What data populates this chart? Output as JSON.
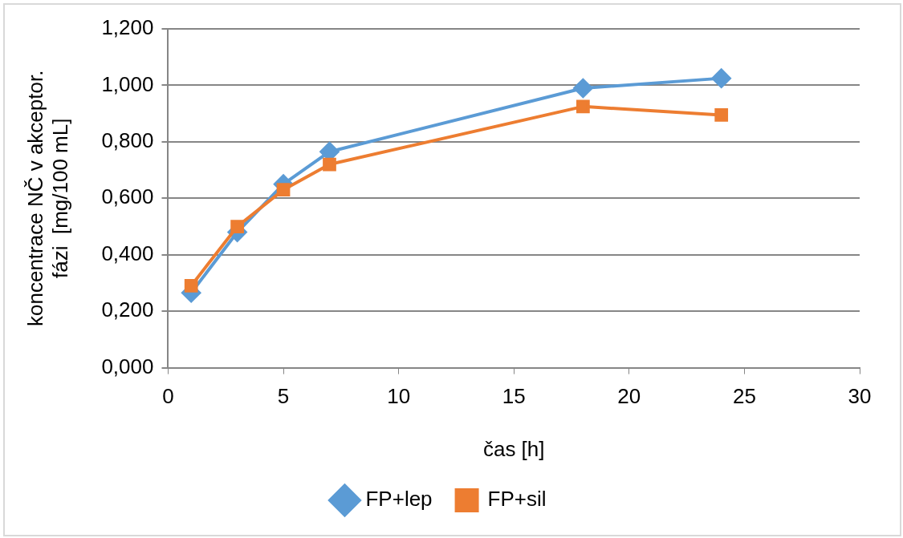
{
  "chart_data": {
    "type": "line",
    "xlabel": "čas [h]",
    "ylabel": "koncentrace NČ v akceptor. fázi  [mg/100 mL]",
    "x": [
      1,
      3,
      5,
      7,
      18,
      24
    ],
    "series": [
      {
        "name": "FP+lep",
        "color": "#5b9bd5",
        "marker": "diamond",
        "values": [
          0.265,
          0.48,
          0.65,
          0.765,
          0.99,
          1.025
        ]
      },
      {
        "name": "FP+sil",
        "color": "#ed7d31",
        "marker": "square",
        "values": [
          0.29,
          0.5,
          0.63,
          0.72,
          0.925,
          0.895
        ]
      }
    ],
    "xlim": [
      0,
      30
    ],
    "xticks": [
      0,
      5,
      10,
      15,
      20,
      25,
      30
    ],
    "ylim": [
      0,
      1.2
    ],
    "yticks": [
      {
        "value": 0,
        "label": "0,000"
      },
      {
        "value": 0.2,
        "label": "0,200"
      },
      {
        "value": 0.4,
        "label": "0,400"
      },
      {
        "value": 0.6,
        "label": "0,600"
      },
      {
        "value": 0.8,
        "label": "0,800"
      },
      {
        "value": 1,
        "label": "1,000"
      },
      {
        "value": 1.2,
        "label": "1,200"
      }
    ],
    "grid": "y",
    "legend": "bottom",
    "line_style": "solid"
  }
}
